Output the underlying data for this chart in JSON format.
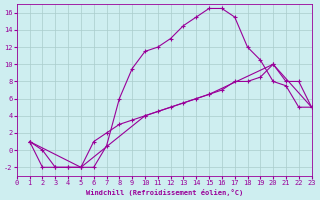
{
  "xlabel": "Windchill (Refroidissement éolien,°C)",
  "background_color": "#ceeef0",
  "grid_color": "#aacccc",
  "line_color": "#990099",
  "xlim": [
    0,
    23
  ],
  "ylim": [
    -3,
    17
  ],
  "xticks": [
    0,
    1,
    2,
    3,
    4,
    5,
    6,
    7,
    8,
    9,
    10,
    11,
    12,
    13,
    14,
    15,
    16,
    17,
    18,
    19,
    20,
    21,
    22,
    23
  ],
  "yticks": [
    -2,
    0,
    2,
    4,
    6,
    8,
    10,
    12,
    14,
    16
  ],
  "series": [
    {
      "x": [
        1,
        2,
        3,
        4,
        5,
        6,
        7,
        8,
        9,
        10,
        11,
        12,
        13,
        14,
        15,
        16,
        17,
        18,
        19,
        20,
        21,
        22,
        23
      ],
      "y": [
        1,
        0,
        -2,
        -2,
        -2,
        -2,
        0.5,
        6,
        9.5,
        11.5,
        12,
        13,
        14.5,
        15.5,
        16.5,
        16.5,
        15.5,
        12,
        10.5,
        8,
        7.5,
        5,
        5
      ]
    },
    {
      "x": [
        1,
        2,
        3,
        4,
        5,
        6,
        7,
        8,
        9,
        10,
        11,
        12,
        13,
        14,
        15,
        16,
        17,
        18,
        19,
        20,
        21,
        22,
        23
      ],
      "y": [
        1,
        -2,
        -2,
        -2,
        -2,
        1,
        2,
        3,
        3.5,
        4,
        4.5,
        5,
        5.5,
        6,
        6.5,
        7,
        8,
        8,
        8.5,
        10,
        8,
        8,
        5
      ]
    },
    {
      "x": [
        1,
        5,
        10,
        15,
        20,
        23
      ],
      "y": [
        1,
        -2,
        4,
        6.5,
        10,
        5
      ]
    }
  ]
}
